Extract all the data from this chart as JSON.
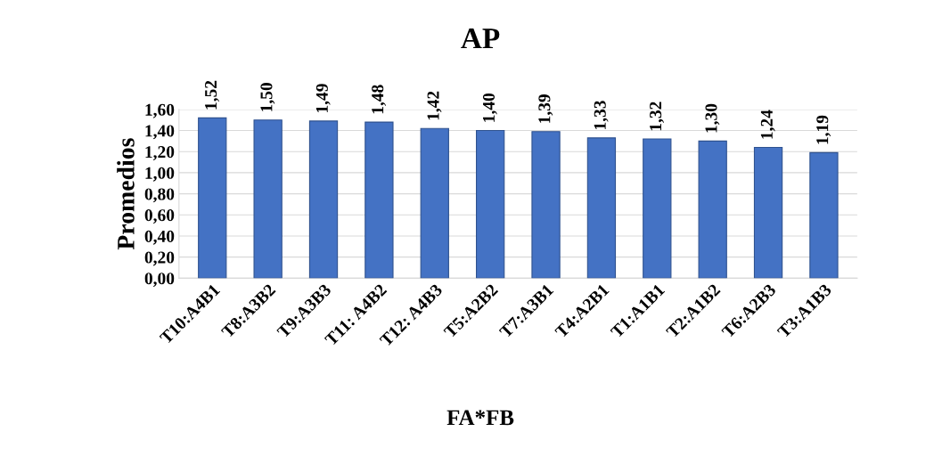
{
  "chart_data": {
    "type": "bar",
    "title": "AP",
    "xlabel": "FA*FB",
    "ylabel": "Promedios",
    "categories": [
      "T10:A4B1",
      "T8:A3B2",
      "T9:A3B3",
      "T11: A4B2",
      "T12: A4B3",
      "T5:A2B2",
      "T7:A3B1",
      "T4:A2B1",
      "T1:A1B1",
      "T2:A1B2",
      "T6:A2B3",
      "T3:A1B3"
    ],
    "values": [
      1.52,
      1.5,
      1.49,
      1.48,
      1.42,
      1.4,
      1.39,
      1.33,
      1.32,
      1.3,
      1.24,
      1.19
    ],
    "value_labels": [
      "1,52",
      "1,50",
      "1,49",
      "1,48",
      "1,42",
      "1,40",
      "1,39",
      "1,33",
      "1,32",
      "1,30",
      "1,24",
      "1,19"
    ],
    "color": "#4472c4",
    "ylim": [
      0,
      1.6
    ],
    "yticks": [
      {
        "value": 0,
        "label": "0,00"
      },
      {
        "value": 0.2,
        "label": "0,20"
      },
      {
        "value": 0.4,
        "label": "0,40"
      },
      {
        "value": 0.6,
        "label": "0,60"
      },
      {
        "value": 0.8,
        "label": "0,80"
      },
      {
        "value": 1.0,
        "label": "1,00"
      },
      {
        "value": 1.2,
        "label": "1,20"
      },
      {
        "value": 1.4,
        "label": "1,40"
      },
      {
        "value": 1.6,
        "label": "1,60"
      }
    ],
    "grid": "y",
    "legend": false
  }
}
